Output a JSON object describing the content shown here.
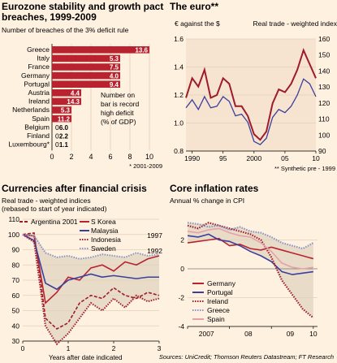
{
  "eurozone": {
    "title_line1": "Eurozone stability and growth pact",
    "title_line2": "breaches, 1999-2009",
    "subtitle": "Number of breaches of the 3% deficit rule",
    "note": [
      "Number on",
      "bar is record",
      "high deficit",
      "(% of GDP)"
    ],
    "footnote": "* 2001-2009",
    "accent": "#b8232f",
    "chart_data": {
      "type": "bar",
      "orientation": "horizontal",
      "categories": [
        "Greece",
        "Italy",
        "France",
        "Germany",
        "Portugal",
        "Austria",
        "Ireland",
        "Netherlands",
        "Spain",
        "Belgium",
        "Finland",
        "Luxembourg"
      ],
      "category_labels": [
        "Greece",
        "Italy",
        "France",
        "Germany",
        "Portugal",
        "Austria",
        "Ireland",
        "Netherlands",
        "Spain",
        "Belgium",
        "Finland",
        "Luxembourg*"
      ],
      "values": [
        10,
        7,
        7,
        7,
        7,
        3,
        3,
        2,
        2,
        0,
        0,
        0
      ],
      "bar_labels": [
        "13.6",
        "5.3",
        "7.5",
        "4.0",
        "9.4",
        "4.4",
        "14.3",
        "5.3",
        "11.2",
        "6.0",
        "2.2",
        "1.1"
      ],
      "xticks": [
        "0",
        "2",
        "4",
        "6",
        "8",
        "10"
      ],
      "xlim": [
        0,
        10
      ]
    }
  },
  "euro": {
    "title": "The euro**",
    "left_label": "€ against the $",
    "right_label": "Real trade - weighted index",
    "footnote": "** Synthetic pre - 1999",
    "chart_data": {
      "type": "line",
      "x": [
        1989,
        1990,
        1991,
        1992,
        1993,
        1994,
        1995,
        1996,
        1997,
        1998,
        1999,
        2000,
        2001,
        2002,
        2003,
        2004,
        2005,
        2006,
        2007,
        2008,
        2009,
        2010
      ],
      "series": [
        {
          "name": "€ against the $",
          "axis": "left",
          "color": "#9e1b2a",
          "values": [
            1.18,
            1.32,
            1.26,
            1.38,
            1.18,
            1.2,
            1.32,
            1.28,
            1.12,
            1.12,
            1.05,
            0.92,
            0.88,
            0.94,
            1.14,
            1.24,
            1.22,
            1.28,
            1.38,
            1.52,
            1.42,
            1.32
          ]
        },
        {
          "name": "Real trade - weighted index",
          "axis": "right",
          "color": "#3b3f9c",
          "values": [
            117,
            122,
            116,
            124,
            117,
            118,
            124,
            121,
            112,
            113,
            108,
            96,
            94,
            98,
            111,
            116,
            114,
            118,
            125,
            135,
            132,
            124
          ]
        }
      ],
      "left_ticks": [
        "0.8",
        "1.0",
        "1.2",
        "1.4",
        "1.6"
      ],
      "left_lim": [
        0.8,
        1.6
      ],
      "right_ticks": [
        "90",
        "100",
        "110",
        "120",
        "130",
        "140",
        "150",
        "160"
      ],
      "right_lim": [
        90,
        160
      ],
      "xticks": [
        "1990",
        "95",
        "2000",
        "05",
        "10"
      ]
    }
  },
  "currencies": {
    "title": "Currencies after financial crisis",
    "subtitle_line1": "Real trade - weighted indices",
    "subtitle_line2": "(rebased to start of year indicated)",
    "xlabel": "Years after date indicated",
    "chart_data": {
      "type": "line",
      "x": [
        0,
        0.25,
        0.5,
        0.75,
        1,
        1.25,
        1.5,
        1.75,
        2,
        2.25,
        2.5,
        2.75,
        3
      ],
      "series": [
        {
          "name": "Argentina 2001",
          "color": "#9e1b2a",
          "style": "dash",
          "values": [
            100,
            101,
            45,
            38,
            42,
            55,
            60,
            58,
            65,
            60,
            58,
            62,
            60
          ]
        },
        {
          "name": "S Korea 1997",
          "color": "#b8232f",
          "style": "solid",
          "values": [
            100,
            99,
            55,
            62,
            72,
            70,
            78,
            80,
            76,
            82,
            80,
            84,
            86
          ]
        },
        {
          "name": "Malaysia 1997",
          "color": "#3b3f9c",
          "style": "solid",
          "values": [
            100,
            96,
            68,
            64,
            70,
            72,
            74,
            72,
            73,
            72,
            71,
            72,
            72
          ]
        },
        {
          "name": "Indonesia 1997",
          "color": "#9e1b2a",
          "style": "dot",
          "values": [
            100,
            95,
            40,
            28,
            35,
            45,
            55,
            50,
            58,
            52,
            60,
            56,
            58
          ]
        },
        {
          "name": "Sweden 1992",
          "color": "#8a93c8",
          "style": "dot",
          "values": [
            100,
            99,
            88,
            85,
            86,
            84,
            85,
            87,
            86,
            85,
            88,
            86,
            87
          ]
        }
      ],
      "range_band": "grey",
      "yticks": [
        "30",
        "40",
        "50",
        "60",
        "70",
        "80",
        "90",
        "100",
        "110"
      ],
      "ylim": [
        30,
        110
      ],
      "xticks": [
        "0",
        "1",
        "2",
        "3"
      ]
    }
  },
  "inflation": {
    "title": "Core inflation rates",
    "subtitle": "Annual % change in CPI",
    "chart_data": {
      "type": "line",
      "x": [
        2007.0,
        2007.25,
        2007.5,
        2007.75,
        2008.0,
        2008.25,
        2008.5,
        2008.75,
        2009.0,
        2009.25,
        2009.5,
        2009.75,
        2010.0
      ],
      "series": [
        {
          "name": "Germany",
          "color": "#b8232f",
          "style": "solid",
          "values": [
            1.8,
            1.9,
            2.0,
            2.1,
            1.6,
            1.7,
            1.4,
            1.3,
            1.5,
            1.3,
            1.1,
            0.9,
            0.7
          ]
        },
        {
          "name": "Portugal",
          "color": "#3b3f9c",
          "style": "solid",
          "values": [
            2.3,
            2.2,
            2.4,
            2.0,
            1.9,
            1.6,
            1.2,
            0.9,
            0.5,
            -0.2,
            -0.4,
            -0.3,
            -0.2
          ]
        },
        {
          "name": "Ireland",
          "color": "#9e1b2a",
          "style": "dot",
          "values": [
            3.0,
            2.8,
            3.2,
            3.0,
            2.8,
            2.6,
            2.4,
            2.0,
            0.8,
            -0.8,
            -1.8,
            -2.8,
            -3.4
          ]
        },
        {
          "name": "Greece",
          "color": "#8a93c8",
          "style": "dot",
          "values": [
            3.2,
            3.1,
            2.9,
            3.0,
            2.7,
            2.9,
            2.6,
            2.5,
            2.2,
            1.8,
            1.6,
            1.4,
            1.8
          ]
        },
        {
          "name": "Spain",
          "color": "#e8a0a8",
          "style": "solid",
          "values": [
            2.6,
            2.5,
            2.7,
            2.8,
            2.5,
            2.3,
            2.2,
            1.8,
            1.2,
            0.4,
            0.1,
            0.0,
            0.1
          ]
        }
      ],
      "range_band": "grey",
      "yticks": [
        "-4",
        "-2",
        "0",
        "2"
      ],
      "ylim": [
        -4,
        4
      ],
      "xticks": [
        "2007",
        "08",
        "09",
        "10"
      ]
    }
  },
  "source": "Sources: UniCredit; Thomson Reuters Datastream; FT Research"
}
